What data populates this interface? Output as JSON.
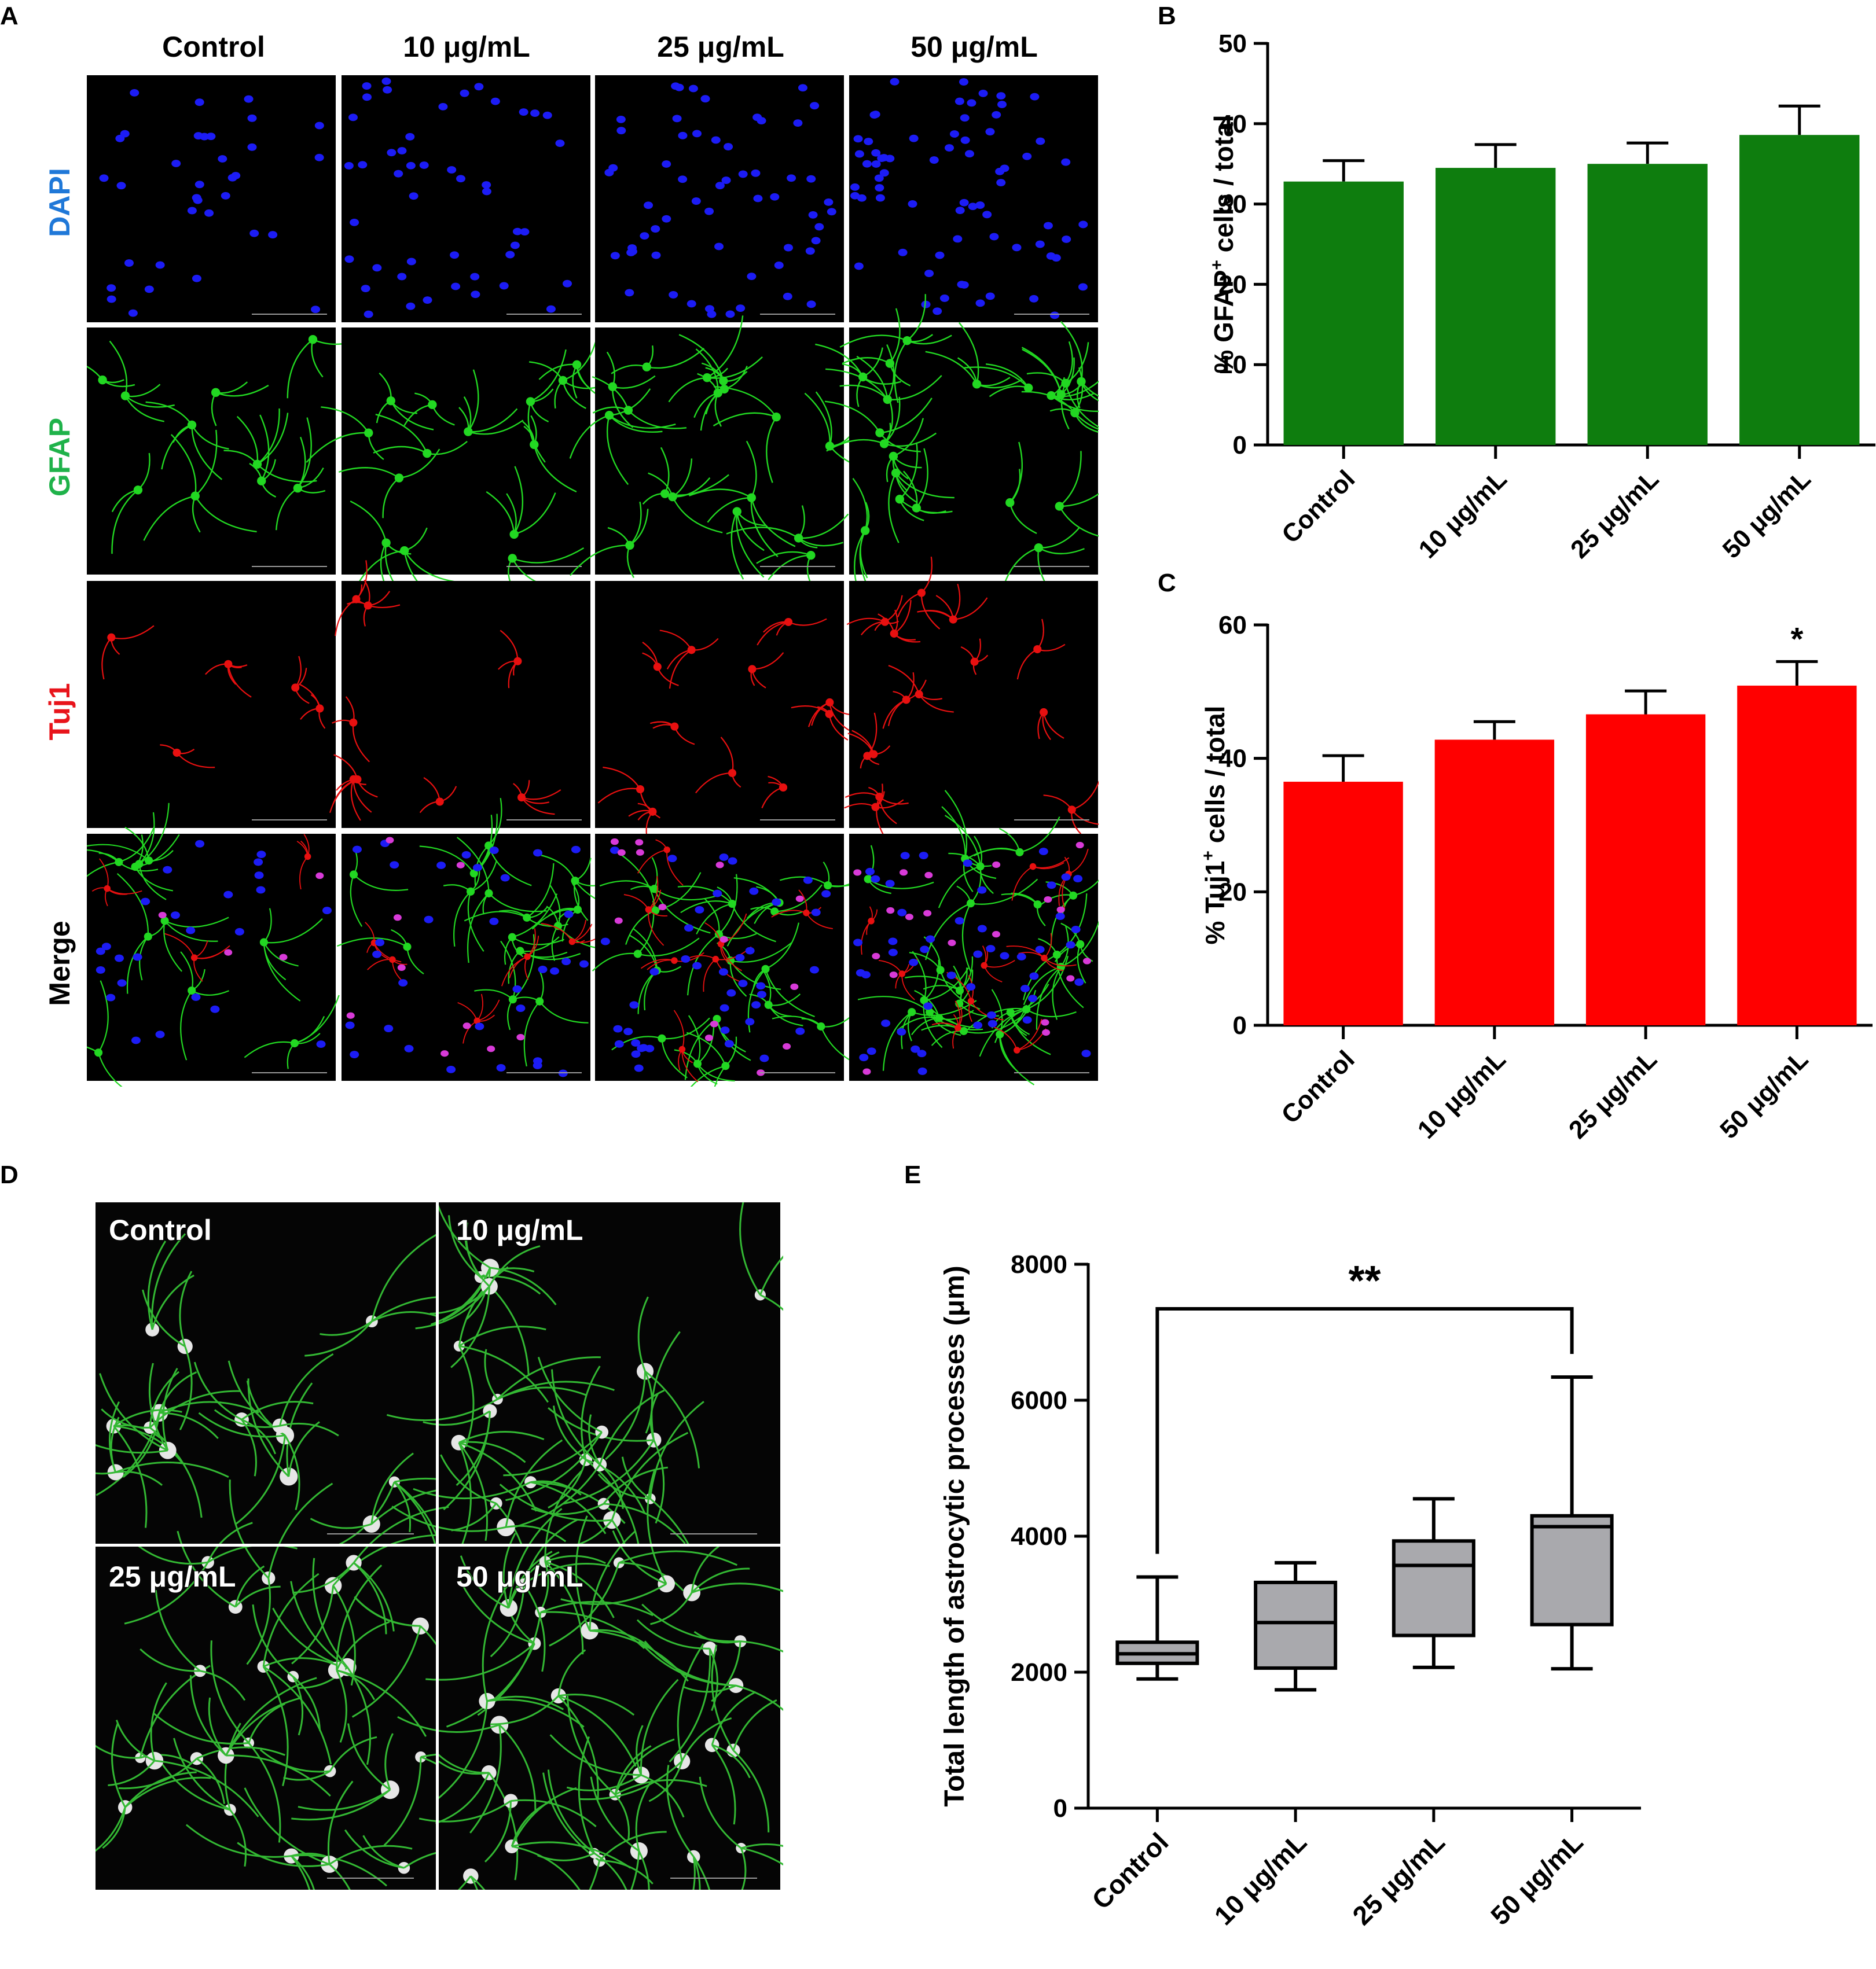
{
  "panel_labels": {
    "a": "A",
    "b": "B",
    "c": "C",
    "d": "D",
    "e": "E"
  },
  "micrographs": {
    "columns": [
      "Control",
      "10 μg/mL",
      "25 μg/mL",
      "50 μg/mL"
    ],
    "rows": [
      {
        "label": "DAPI",
        "color": "#1f78d8"
      },
      {
        "label": "GFAP",
        "color": "#1fb24a"
      },
      {
        "label": "Tuj1",
        "color": "#e8141b"
      },
      {
        "label": "Merge",
        "color": "#000000"
      }
    ]
  },
  "tracings": {
    "panels": [
      "Control",
      "10 μg/mL",
      "25 μg/mL",
      "50 μg/mL"
    ]
  },
  "chart_data": [
    {
      "panel": "B",
      "type": "bar",
      "categories": [
        "Control",
        "10 μg/mL",
        "25 μg/mL",
        "50 μg/mL"
      ],
      "values": [
        32.8,
        34.5,
        35.0,
        38.6
      ],
      "errors": [
        2.6,
        2.9,
        2.6,
        3.6
      ],
      "ylim": [
        0,
        50
      ],
      "yticks": [
        "0",
        "10",
        "20",
        "30",
        "40",
        "50"
      ],
      "ylabel_pre": "% GFAP",
      "ylabel_sup": "+",
      "ylabel_post": " cells / total",
      "color": "#0e7d0e",
      "annotations": []
    },
    {
      "panel": "C",
      "type": "bar",
      "categories": [
        "Control",
        "10 μg/mL",
        "25 μg/mL",
        "50 μg/mL"
      ],
      "values": [
        36.5,
        42.8,
        46.6,
        50.9
      ],
      "errors": [
        3.9,
        2.7,
        3.5,
        3.6
      ],
      "ylim": [
        0,
        60
      ],
      "yticks": [
        "0",
        "20",
        "40",
        "60"
      ],
      "ylabel_pre": "% Tuj1",
      "ylabel_sup": "+",
      "ylabel_post": " cells / total",
      "color": "#ff0000",
      "annotations": [
        "",
        "",
        "",
        "*"
      ]
    },
    {
      "panel": "E",
      "type": "box",
      "categories": [
        "Control",
        "10 μg/mL",
        "25 μg/mL",
        "50 μg/mL"
      ],
      "boxes": [
        {
          "min": 1900,
          "q1": 2130,
          "median": 2270,
          "q3": 2440,
          "max": 3400
        },
        {
          "min": 1740,
          "q1": 2060,
          "median": 2730,
          "q3": 3320,
          "max": 3610
        },
        {
          "min": 2070,
          "q1": 2540,
          "median": 3570,
          "q3": 3930,
          "max": 4550
        },
        {
          "min": 2050,
          "q1": 2700,
          "median": 4140,
          "q3": 4300,
          "max": 6340
        }
      ],
      "ylim": [
        0,
        8000
      ],
      "yticks": [
        "0",
        "2000",
        "4000",
        "6000",
        "8000"
      ],
      "ylabel": "Total length of astrocytic processes (μm)",
      "color": "#a9a9ad",
      "significance": {
        "from": "Control",
        "to": "50 μg/mL",
        "label": "**"
      }
    }
  ]
}
